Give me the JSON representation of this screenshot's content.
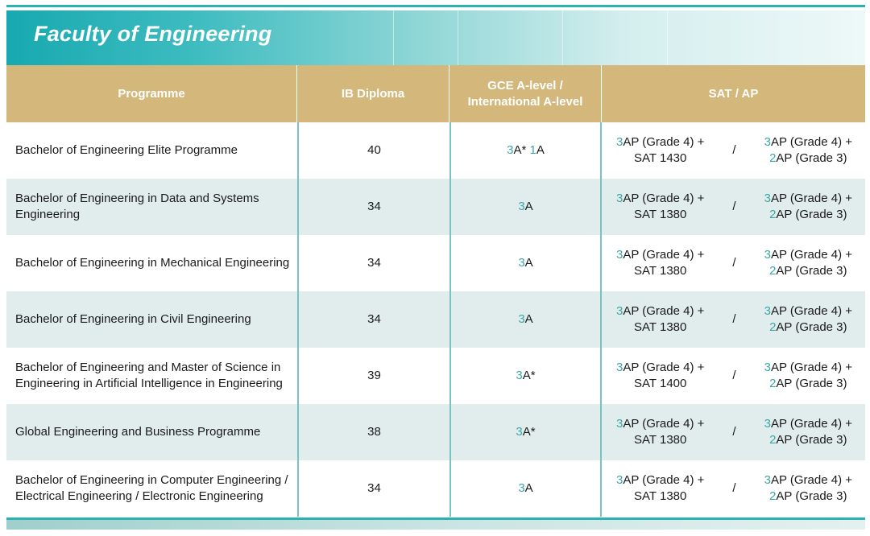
{
  "header": {
    "title": "Faculty of Engineering"
  },
  "columns": {
    "programme": "Programme",
    "ib": "IB Diploma",
    "gce_line1": "GCE A-level /",
    "gce_line2": "International A-level",
    "sat": "SAT / AP"
  },
  "separator": "/",
  "rows": [
    {
      "programme_line1": "Bachelor of Engineering Elite Programme",
      "programme_line2": "",
      "ib": "40",
      "gce_num1": "3",
      "gce_grade1": "A* ",
      "gce_num2": "1",
      "gce_grade2": "A",
      "sat_a_num": "3",
      "sat_a_rest": "AP (Grade 4) +",
      "sat_a_line2": "SAT 1430",
      "sat_b_num1": "3",
      "sat_b_rest1": "AP (Grade 4) +",
      "sat_b_num2": "2",
      "sat_b_rest2": "AP (Grade 3)"
    },
    {
      "programme_line1": "Bachelor of Engineering in Data and Systems",
      "programme_line2": "Engineering",
      "ib": "34",
      "gce_num1": "3",
      "gce_grade1": "A",
      "gce_num2": "",
      "gce_grade2": "",
      "sat_a_num": "3",
      "sat_a_rest": "AP (Grade 4) +",
      "sat_a_line2": "SAT 1380",
      "sat_b_num1": "3",
      "sat_b_rest1": "AP (Grade 4) +",
      "sat_b_num2": "2",
      "sat_b_rest2": "AP (Grade 3)"
    },
    {
      "programme_line1": "Bachelor of Engineering in Mechanical Engineering",
      "programme_line2": "",
      "ib": "34",
      "gce_num1": "3",
      "gce_grade1": "A",
      "gce_num2": "",
      "gce_grade2": "",
      "sat_a_num": "3",
      "sat_a_rest": "AP (Grade 4) +",
      "sat_a_line2": "SAT 1380",
      "sat_b_num1": "3",
      "sat_b_rest1": "AP (Grade 4) +",
      "sat_b_num2": "2",
      "sat_b_rest2": "AP (Grade 3)"
    },
    {
      "programme_line1": "Bachelor of Engineering in Civil Engineering",
      "programme_line2": "",
      "ib": "34",
      "gce_num1": "3",
      "gce_grade1": "A",
      "gce_num2": "",
      "gce_grade2": "",
      "sat_a_num": "3",
      "sat_a_rest": "AP (Grade 4) +",
      "sat_a_line2": "SAT 1380",
      "sat_b_num1": "3",
      "sat_b_rest1": "AP (Grade 4) +",
      "sat_b_num2": "2",
      "sat_b_rest2": "AP (Grade 3)"
    },
    {
      "programme_line1": "Bachelor of Engineering and Master of Science in",
      "programme_line2": "Engineering in Artificial Intelligence in Engineering",
      "ib": "39",
      "gce_num1": "3",
      "gce_grade1": "A*",
      "gce_num2": "",
      "gce_grade2": "",
      "sat_a_num": "3",
      "sat_a_rest": "AP (Grade 4) +",
      "sat_a_line2": "SAT 1400",
      "sat_b_num1": "3",
      "sat_b_rest1": "AP (Grade 4) +",
      "sat_b_num2": "2",
      "sat_b_rest2": "AP (Grade 3)"
    },
    {
      "programme_line1": "Global Engineering and Business Programme",
      "programme_line2": "",
      "ib": "38",
      "gce_num1": "3",
      "gce_grade1": "A*",
      "gce_num2": "",
      "gce_grade2": "",
      "sat_a_num": "3",
      "sat_a_rest": "AP (Grade 4) +",
      "sat_a_line2": "SAT 1380",
      "sat_b_num1": "3",
      "sat_b_rest1": "AP (Grade 4) +",
      "sat_b_num2": "2",
      "sat_b_rest2": "AP (Grade 3)"
    },
    {
      "programme_line1": "Bachelor of Engineering in Computer Engineering /",
      "programme_line2": "Electrical Engineering / Electronic Engineering",
      "ib": "34",
      "gce_num1": "3",
      "gce_grade1": "A",
      "gce_num2": "",
      "gce_grade2": "",
      "sat_a_num": "3",
      "sat_a_rest": "AP (Grade 4) +",
      "sat_a_line2": "SAT 1380",
      "sat_b_num1": "3",
      "sat_b_rest1": "AP (Grade 4) +",
      "sat_b_num2": "2",
      "sat_b_rest2": "AP (Grade 3)"
    }
  ]
}
